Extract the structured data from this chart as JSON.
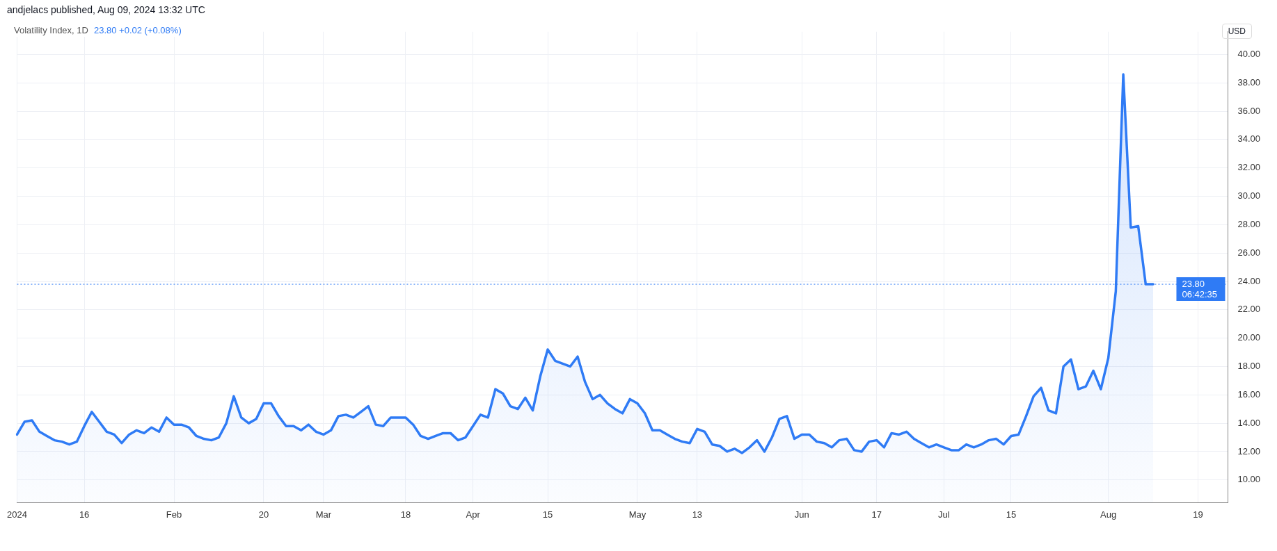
{
  "chart_data": {
    "type": "area",
    "title": "Volatility Index, 1D",
    "subtitle": "23.80  +0.02 (+0.08%)",
    "ylabel": "USD",
    "annotations": [
      "andjelacs published, Aug 09, 2024 13:32 UTC",
      "06:42:35"
    ],
    "categories": [
      "2024",
      null,
      null,
      null,
      null,
      null,
      null,
      null,
      null,
      "16",
      null,
      null,
      null,
      null,
      null,
      null,
      null,
      null,
      null,
      null,
      null,
      "Feb",
      null,
      null,
      null,
      null,
      null,
      null,
      null,
      null,
      null,
      null,
      null,
      "20",
      null,
      null,
      null,
      null,
      null,
      null,
      null,
      "Mar",
      null,
      null,
      null,
      null,
      null,
      null,
      null,
      null,
      null,
      null,
      "18",
      null,
      null,
      null,
      null,
      null,
      null,
      null,
      null,
      "Apr",
      null,
      null,
      null,
      null,
      null,
      null,
      null,
      null,
      null,
      "15",
      null,
      null,
      null,
      null,
      null,
      null,
      null,
      null,
      null,
      null,
      null,
      "May",
      null,
      null,
      null,
      null,
      null,
      null,
      null,
      "13",
      null,
      null,
      null,
      null,
      null,
      null,
      null,
      null,
      null,
      null,
      null,
      null,
      null,
      "Jun",
      null,
      null,
      null,
      null,
      null,
      null,
      null,
      null,
      null,
      "17",
      null,
      null,
      null,
      null,
      null,
      null,
      null,
      null,
      "Jul",
      null,
      null,
      null,
      null,
      null,
      null,
      null,
      null,
      "15",
      null,
      null,
      null,
      null,
      null,
      null,
      null,
      null,
      null,
      null,
      null,
      null,
      "Aug",
      null,
      null,
      null,
      null,
      null,
      null,
      null,
      null,
      null,
      null,
      null,
      "19",
      null,
      null,
      null,
      null
    ],
    "series": [
      {
        "color": "#2f7bf5",
        "values": [
          13.2,
          14.1,
          14.2,
          13.4,
          13.1,
          12.8,
          12.7,
          12.5,
          12.7,
          13.8,
          14.8,
          14.1,
          13.4,
          13.2,
          12.6,
          13.2,
          13.5,
          13.3,
          13.7,
          13.4,
          14.4,
          13.9,
          13.9,
          13.7,
          13.1,
          12.9,
          12.8,
          13.0,
          14.0,
          15.9,
          14.4,
          14.0,
          14.3,
          15.4,
          15.4,
          14.5,
          13.8,
          13.8,
          13.5,
          13.9,
          13.4,
          13.2,
          13.5,
          14.5,
          14.6,
          14.4,
          14.8,
          15.2,
          13.9,
          13.8,
          14.4,
          14.4,
          14.4,
          13.9,
          13.1,
          12.9,
          13.1,
          13.3,
          13.3,
          12.8,
          13.0,
          13.8,
          14.6,
          14.4,
          16.4,
          16.1,
          15.2,
          15.0,
          15.8,
          14.9,
          17.3,
          19.2,
          18.4,
          18.2,
          18.0,
          18.7,
          16.9,
          15.7,
          16.0,
          15.4,
          15.0,
          14.7,
          15.7,
          15.4,
          14.7,
          13.5,
          13.5,
          13.2,
          12.9,
          12.7,
          12.6,
          13.6,
          13.4,
          12.5,
          12.4,
          12.0,
          12.2,
          11.9,
          12.3,
          12.8,
          12.0,
          13.0,
          14.3,
          14.5,
          12.9,
          13.2,
          13.2,
          12.7,
          12.6,
          12.3,
          12.8,
          12.9,
          12.1,
          12.0,
          12.7,
          12.8,
          12.3,
          13.3,
          13.2,
          13.4,
          12.9,
          12.6,
          12.3,
          12.5,
          12.3,
          12.1,
          12.1,
          12.5,
          12.3,
          12.5,
          12.8,
          12.9,
          12.5,
          13.1,
          13.2,
          14.5,
          15.9,
          16.5,
          14.9,
          14.7,
          18.0,
          18.5,
          16.4,
          16.6,
          17.7,
          16.4,
          18.6,
          23.3,
          38.6,
          27.8,
          27.9,
          23.8,
          23.8,
          null,
          null,
          null,
          null,
          null,
          null,
          null,
          null,
          null,
          null
        ]
      }
    ],
    "ylim": [
      8.4,
      41.6
    ],
    "yticks": [
      {
        "value": 10,
        "label": "10.00"
      },
      {
        "value": 12,
        "label": "12.00"
      },
      {
        "value": 14,
        "label": "14.00"
      },
      {
        "value": 16,
        "label": "16.00"
      },
      {
        "value": 18,
        "label": "18.00"
      },
      {
        "value": 20,
        "label": "20.00"
      },
      {
        "value": 22,
        "label": "22.00"
      },
      {
        "value": 24,
        "label": "24.00"
      },
      {
        "value": 26,
        "label": "26.00"
      },
      {
        "value": 28,
        "label": "28.00"
      },
      {
        "value": 30,
        "label": "30.00"
      },
      {
        "value": 32,
        "label": "32.00"
      },
      {
        "value": 34,
        "label": "34.00"
      },
      {
        "value": 36,
        "label": "36.00"
      },
      {
        "value": 38,
        "label": "38.00"
      },
      {
        "value": 40,
        "label": "40.00"
      }
    ],
    "ref_lines": [
      {
        "axis": "y",
        "value": 23.8,
        "label": "23.80",
        "color": "#2f7bf5",
        "line_style": "dotted"
      }
    ],
    "grid": true,
    "legend": false,
    "marker": "none",
    "line_style": "solid"
  }
}
